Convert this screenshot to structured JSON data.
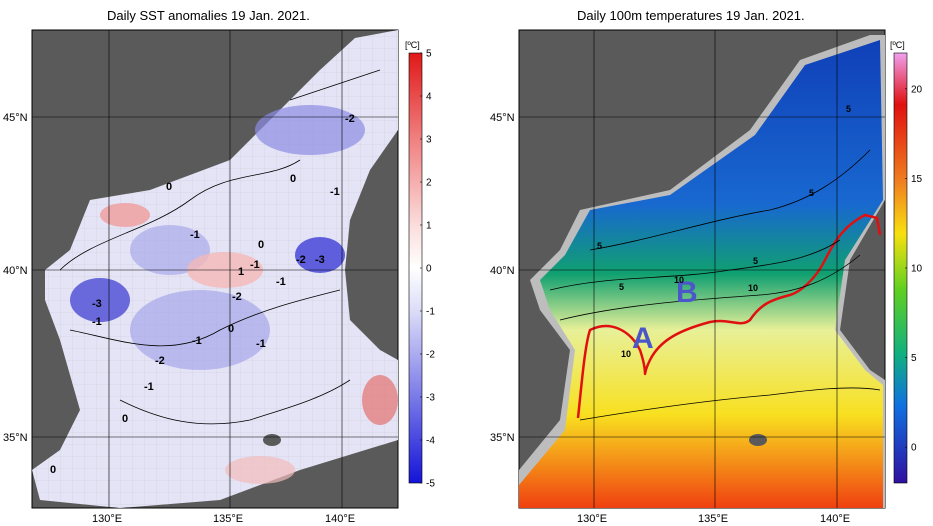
{
  "left_panel": {
    "title": "Daily SST anomalies 19 Jan. 2021.",
    "unit": "[ºC]",
    "colorbar_ticks": [
      "5",
      "4",
      "3",
      "2",
      "1",
      "0",
      "-1",
      "-2",
      "-3",
      "-4",
      "-5"
    ],
    "colorbar_range": [
      -5,
      5
    ],
    "colors": {
      "neg": "#1a1adf",
      "zero": "#ffffff",
      "pos": "#e02020",
      "land": "#595959",
      "outside": "#ffffff"
    },
    "x_ticks": [
      "130°E",
      "135°E",
      "140°E"
    ],
    "y_ticks": [
      "45°N",
      "40°N",
      "35°N"
    ],
    "contour_labels": [
      "0",
      "-1",
      "-2",
      "0",
      "-1",
      "-1",
      "0",
      "1",
      "-1",
      "-2",
      "-3",
      "-3",
      "-1",
      "0",
      "-1",
      "-2",
      "-1",
      "-1",
      "0",
      "0",
      "-2"
    ]
  },
  "right_panel": {
    "title": "Daily 100m temperatures 19 Jan. 2021.",
    "unit": "[ºC]",
    "colorbar_ticks": [
      "20",
      "15",
      "10",
      "5",
      "0"
    ],
    "colorbar_range": [
      -2,
      22
    ],
    "x_ticks": [
      "130°E",
      "135°E",
      "140°E"
    ],
    "y_ticks": [
      "45°N",
      "40°N",
      "35°N"
    ],
    "contour_labels": [
      "5",
      "5",
      "5",
      "5",
      "10",
      "5",
      "10",
      "10"
    ],
    "region_labels": [
      "A",
      "B"
    ],
    "colors": {
      "front_line": "#e01010",
      "region_label": "#4b57c8",
      "land": "#595959",
      "shelf": "#bfbfbf"
    }
  }
}
